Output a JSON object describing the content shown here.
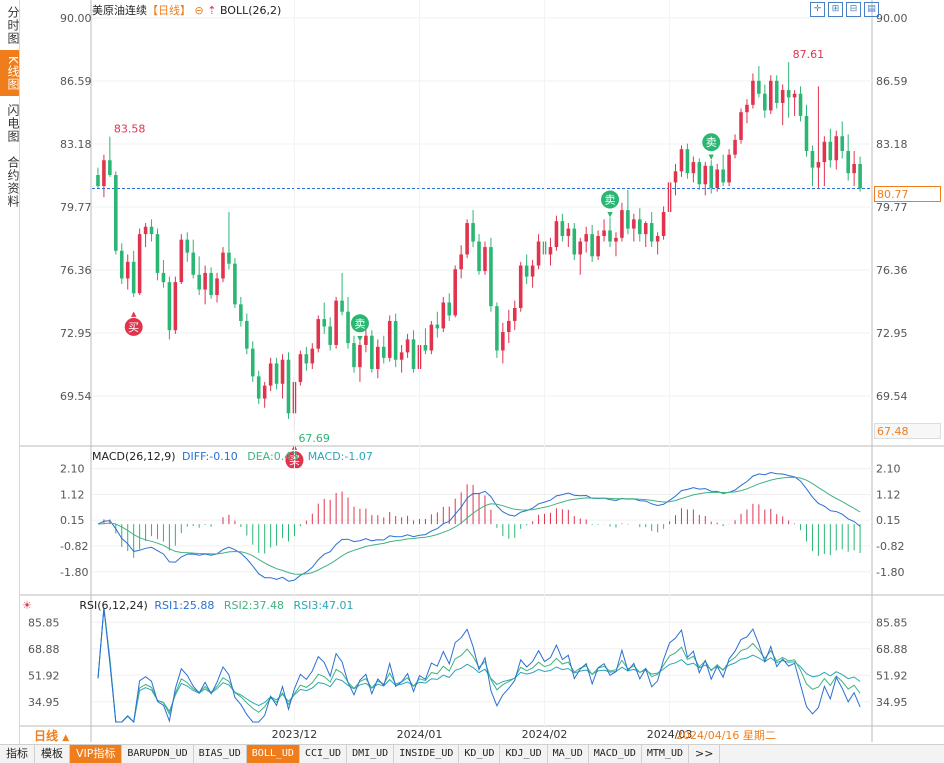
{
  "sidebar": {
    "tabs": [
      "分时图",
      "K线图",
      "闪电图",
      "合约资料"
    ],
    "active": 1
  },
  "header": {
    "symbol": "美原油连续",
    "period": "【日线】",
    "indicator": "BOLL(26,2)"
  },
  "price_panel": {
    "ticks": [
      "90.00",
      "86.59",
      "83.18",
      "79.77",
      "76.36",
      "72.95",
      "69.54"
    ],
    "current_price": "80.77",
    "low_box": "67.48",
    "annotations": {
      "high1": "83.58",
      "high2": "87.61",
      "low": "67.69"
    },
    "signals": {
      "buy": "买",
      "sell": "卖"
    }
  },
  "macd_panel": {
    "title": "MACD(26,12,9)",
    "diff": "DIFF:-0.10",
    "dea": "DEA:0.43",
    "macd": "MACD:-1.07",
    "ticks": [
      "2.10",
      "1.12",
      "0.15",
      "-0.82",
      "-1.80"
    ]
  },
  "rsi_panel": {
    "title": "RSI(6,12,24)",
    "rsi1": "RSI1:25.88",
    "rsi2": "RSI2:37.48",
    "rsi3": "RSI3:47.01",
    "ticks": [
      "85.85",
      "68.88",
      "51.92",
      "34.95"
    ]
  },
  "x_axis": {
    "labels": [
      "2023/12",
      "2024/01",
      "2024/02",
      "2024/03"
    ],
    "current_date": "2024/04/16 星期二"
  },
  "period_label": "日线",
  "bottom_bar": [
    "指标",
    "模板",
    "VIP指标",
    "BARUPDN_UD",
    "BIAS_UD",
    "BOLL_UD",
    "CCI_UD",
    "DMI_UD",
    "INSIDE_UD",
    "KD_UD",
    "KDJ_UD",
    "MA_UD",
    "MACD_UD",
    "MTM_UD",
    ">>"
  ],
  "colors": {
    "up": "#e0334e",
    "down": "#2bb673",
    "accent": "#f07d1b",
    "diff": "#2a6fd6",
    "dea": "#3fb37f",
    "rsi1": "#2a6fd6",
    "rsi2": "#3fb37f",
    "rsi3": "#2aa6b8"
  },
  "chart_data": {
    "type": "candlestick",
    "title": "美原油连续 日线",
    "ylim": [
      67.48,
      90.0
    ],
    "ohlc": [
      [
        81.5,
        81.9,
        80.8,
        80.9
      ],
      [
        80.9,
        82.6,
        80.3,
        82.3
      ],
      [
        82.3,
        83.58,
        81.4,
        81.5
      ],
      [
        81.5,
        81.7,
        77.2,
        77.4
      ],
      [
        77.4,
        77.8,
        75.6,
        75.9
      ],
      [
        75.9,
        77.2,
        75.3,
        76.8
      ],
      [
        76.8,
        77.4,
        74.9,
        75.1
      ],
      [
        75.1,
        78.6,
        75.0,
        78.3
      ],
      [
        78.3,
        78.9,
        77.6,
        78.7
      ],
      [
        78.7,
        79.1,
        77.9,
        78.3
      ],
      [
        78.3,
        78.6,
        75.8,
        76.2
      ],
      [
        76.2,
        76.9,
        75.4,
        75.7
      ],
      [
        75.7,
        76.0,
        72.6,
        73.1
      ],
      [
        73.1,
        76.0,
        72.9,
        75.7
      ],
      [
        75.7,
        78.3,
        75.6,
        78.0
      ],
      [
        78.0,
        78.4,
        76.8,
        77.3
      ],
      [
        77.3,
        78.0,
        75.9,
        76.1
      ],
      [
        76.1,
        77.1,
        75.0,
        75.3
      ],
      [
        75.3,
        76.6,
        74.5,
        76.2
      ],
      [
        76.2,
        76.5,
        74.8,
        75.0
      ],
      [
        75.0,
        76.2,
        74.6,
        75.9
      ],
      [
        75.9,
        77.6,
        75.7,
        77.3
      ],
      [
        77.3,
        79.5,
        76.4,
        76.7
      ],
      [
        76.7,
        77.0,
        74.3,
        74.5
      ],
      [
        74.5,
        74.9,
        73.3,
        73.6
      ],
      [
        73.6,
        74.0,
        71.8,
        72.1
      ],
      [
        72.1,
        72.5,
        70.3,
        70.6
      ],
      [
        70.6,
        70.9,
        69.1,
        69.4
      ],
      [
        69.4,
        70.3,
        68.9,
        70.1
      ],
      [
        70.1,
        71.6,
        69.8,
        71.3
      ],
      [
        71.3,
        71.6,
        69.9,
        70.2
      ],
      [
        70.2,
        71.8,
        69.4,
        71.5
      ],
      [
        71.5,
        71.9,
        68.3,
        68.6
      ],
      [
        68.6,
        70.6,
        67.69,
        70.3
      ],
      [
        70.3,
        72.0,
        70.1,
        71.8
      ],
      [
        71.8,
        72.2,
        70.9,
        71.3
      ],
      [
        71.3,
        72.4,
        71.0,
        72.1
      ],
      [
        72.1,
        73.9,
        71.9,
        73.7
      ],
      [
        73.7,
        74.6,
        72.9,
        73.3
      ],
      [
        73.3,
        73.8,
        72.0,
        72.3
      ],
      [
        72.3,
        74.9,
        72.1,
        74.7
      ],
      [
        74.7,
        76.2,
        73.9,
        74.1
      ],
      [
        74.1,
        74.9,
        72.1,
        72.4
      ],
      [
        72.4,
        72.8,
        70.8,
        71.1
      ],
      [
        71.1,
        72.5,
        70.3,
        72.3
      ],
      [
        72.3,
        73.2,
        71.9,
        72.8
      ],
      [
        72.8,
        73.1,
        70.8,
        71.0
      ],
      [
        71.0,
        72.6,
        70.5,
        72.2
      ],
      [
        72.2,
        72.8,
        71.3,
        71.6
      ],
      [
        71.6,
        73.9,
        71.4,
        73.6
      ],
      [
        73.6,
        74.0,
        71.1,
        71.5
      ],
      [
        71.5,
        72.3,
        70.8,
        71.9
      ],
      [
        71.9,
        72.9,
        71.6,
        72.6
      ],
      [
        72.6,
        73.1,
        70.8,
        71.0
      ],
      [
        71.0,
        72.5,
        70.6,
        72.3
      ],
      [
        72.3,
        73.2,
        71.8,
        72.0
      ],
      [
        72.0,
        73.6,
        71.8,
        73.4
      ],
      [
        73.4,
        74.1,
        72.7,
        73.2
      ],
      [
        73.2,
        74.9,
        73.0,
        74.6
      ],
      [
        74.6,
        75.1,
        73.6,
        73.9
      ],
      [
        73.9,
        76.6,
        73.8,
        76.4
      ],
      [
        76.4,
        77.7,
        75.9,
        77.2
      ],
      [
        77.2,
        79.1,
        77.0,
        78.9
      ],
      [
        78.9,
        79.6,
        77.6,
        77.9
      ],
      [
        77.9,
        78.3,
        76.1,
        76.3
      ],
      [
        76.3,
        77.9,
        76.1,
        77.6
      ],
      [
        77.6,
        78.1,
        74.1,
        74.4
      ],
      [
        74.4,
        74.6,
        71.6,
        72.0
      ],
      [
        72.0,
        73.5,
        71.3,
        73.0
      ],
      [
        73.0,
        74.2,
        72.4,
        73.6
      ],
      [
        73.6,
        74.7,
        73.1,
        74.3
      ],
      [
        74.3,
        76.8,
        74.1,
        76.6
      ],
      [
        76.6,
        77.2,
        75.6,
        76.0
      ],
      [
        76.0,
        76.9,
        75.4,
        76.6
      ],
      [
        76.6,
        78.3,
        76.4,
        77.9
      ],
      [
        77.9,
        78.6,
        76.8,
        77.2
      ],
      [
        77.2,
        78.1,
        76.6,
        77.6
      ],
      [
        77.6,
        79.3,
        77.4,
        79.0
      ],
      [
        79.0,
        79.4,
        77.9,
        78.2
      ],
      [
        78.2,
        78.9,
        77.6,
        78.6
      ],
      [
        78.6,
        78.9,
        76.9,
        77.2
      ],
      [
        77.2,
        78.1,
        76.1,
        77.9
      ],
      [
        77.9,
        78.7,
        77.3,
        78.3
      ],
      [
        78.3,
        78.8,
        76.8,
        77.1
      ],
      [
        77.1,
        78.5,
        76.9,
        78.2
      ],
      [
        78.2,
        79.1,
        77.9,
        78.5
      ],
      [
        78.5,
        79.2,
        77.6,
        77.9
      ],
      [
        77.9,
        78.4,
        77.1,
        78.1
      ],
      [
        78.1,
        80.0,
        77.9,
        79.6
      ],
      [
        79.6,
        80.7,
        78.3,
        78.6
      ],
      [
        78.6,
        79.4,
        77.9,
        79.1
      ],
      [
        79.1,
        79.7,
        77.9,
        78.3
      ],
      [
        78.3,
        79.0,
        77.6,
        78.9
      ],
      [
        78.9,
        79.5,
        77.6,
        77.9
      ],
      [
        77.9,
        78.4,
        77.2,
        78.2
      ],
      [
        78.2,
        79.8,
        78.0,
        79.5
      ],
      [
        79.5,
        81.3,
        79.3,
        81.1
      ],
      [
        81.1,
        82.1,
        80.4,
        81.7
      ],
      [
        81.7,
        83.1,
        81.4,
        82.9
      ],
      [
        82.9,
        83.2,
        81.3,
        81.6
      ],
      [
        81.6,
        82.5,
        81.1,
        82.2
      ],
      [
        82.2,
        82.4,
        80.7,
        81.0
      ],
      [
        81.0,
        82.2,
        80.4,
        82.0
      ],
      [
        82.0,
        82.3,
        80.5,
        80.8
      ],
      [
        80.8,
        82.1,
        80.6,
        81.8
      ],
      [
        81.8,
        82.6,
        80.9,
        81.1
      ],
      [
        81.1,
        82.9,
        80.9,
        82.6
      ],
      [
        82.6,
        83.7,
        82.4,
        83.4
      ],
      [
        83.4,
        85.1,
        83.2,
        84.9
      ],
      [
        84.9,
        85.6,
        84.3,
        85.3
      ],
      [
        85.3,
        87.0,
        85.1,
        86.6
      ],
      [
        86.6,
        87.4,
        85.7,
        85.9
      ],
      [
        85.9,
        86.4,
        84.6,
        85.0
      ],
      [
        85.0,
        86.9,
        84.8,
        86.6
      ],
      [
        86.6,
        86.9,
        85.1,
        85.4
      ],
      [
        85.4,
        86.4,
        84.2,
        86.1
      ],
      [
        86.1,
        87.61,
        84.6,
        85.7
      ],
      [
        85.7,
        86.1,
        84.7,
        85.9
      ],
      [
        85.9,
        86.3,
        84.4,
        84.7
      ],
      [
        84.7,
        85.3,
        82.5,
        82.8
      ],
      [
        82.8,
        83.1,
        80.9,
        81.9
      ],
      [
        81.9,
        86.3,
        80.8,
        82.2
      ],
      [
        82.2,
        83.6,
        80.9,
        83.3
      ],
      [
        83.3,
        84.0,
        81.9,
        82.3
      ],
      [
        82.3,
        83.9,
        81.8,
        83.6
      ],
      [
        83.6,
        84.4,
        82.4,
        82.8
      ],
      [
        82.8,
        83.7,
        81.2,
        81.6
      ],
      [
        81.6,
        82.8,
        80.9,
        82.1
      ],
      [
        82.1,
        82.5,
        80.6,
        80.77
      ]
    ],
    "macd": {
      "diff": -0.1,
      "dea": 0.43,
      "macd": -1.07,
      "ylim": [
        -2.3,
        2.5
      ]
    },
    "rsi": {
      "rsi1": 25.88,
      "rsi2": 37.48,
      "rsi3": 47.01,
      "ylim": [
        22,
        95
      ]
    }
  }
}
